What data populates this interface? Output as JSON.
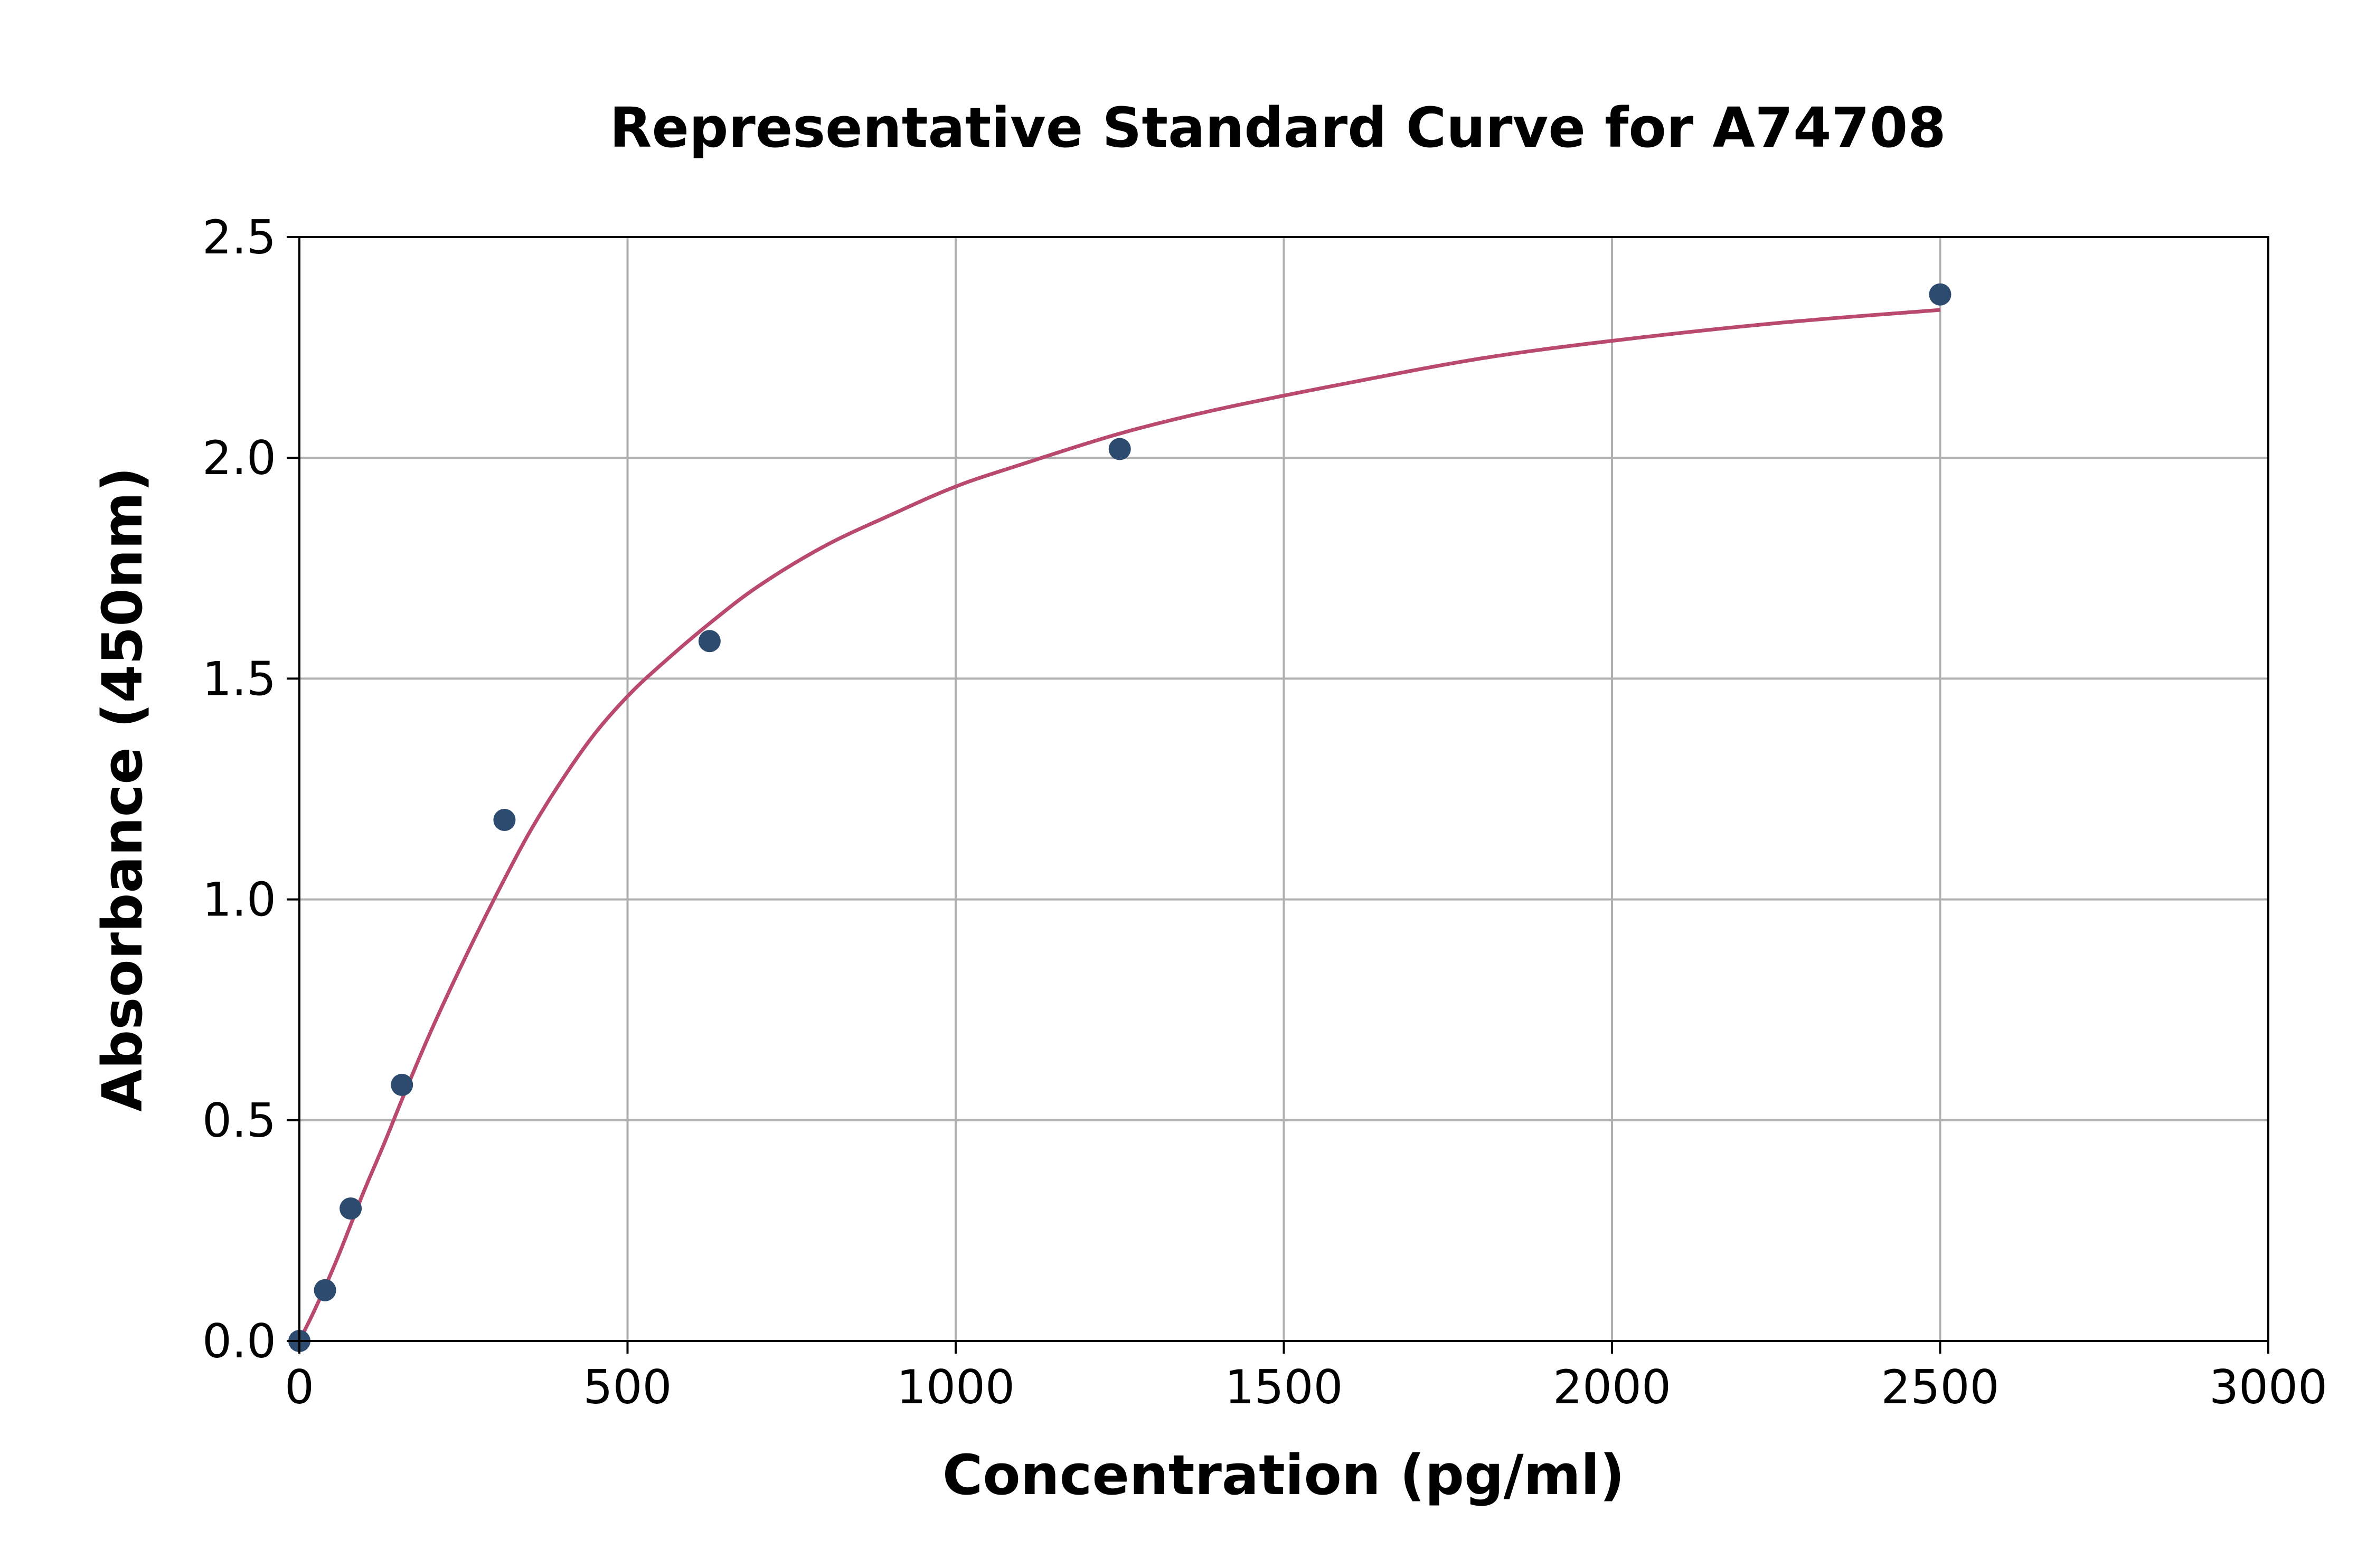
{
  "chart_data": {
    "type": "scatter",
    "title": "Representative Standard Curve for A74708",
    "xlabel": "Concentration (pg/ml)",
    "ylabel": "Absorbance (450nm)",
    "xlim": [
      0,
      3000
    ],
    "ylim": [
      0,
      2.5
    ],
    "xticks": [
      0,
      500,
      1000,
      1500,
      2000,
      2500,
      3000
    ],
    "xtick_labels": [
      "0",
      "500",
      "1000",
      "1500",
      "2000",
      "2500",
      "3000"
    ],
    "yticks": [
      0,
      0.5,
      1.0,
      1.5,
      2.0,
      2.5
    ],
    "ytick_labels": [
      "0.0",
      "0.5",
      "1.0",
      "1.5",
      "2.0",
      "2.5"
    ],
    "grid": true,
    "legend": "none",
    "series": [
      {
        "kind": "points",
        "color": "#2d4b6e",
        "x": [
          0,
          39.06,
          78.13,
          156.25,
          312.5,
          625,
          1250,
          2500
        ],
        "y": [
          0.0,
          0.115,
          0.3,
          0.58,
          1.18,
          1.585,
          2.02,
          2.37
        ]
      },
      {
        "kind": "fit-curve",
        "color": "#b94a6e",
        "x": [
          0,
          20,
          40,
          60,
          80,
          100,
          130,
          160,
          200,
          250,
          300,
          350,
          400,
          450,
          500,
          550,
          625,
          700,
          800,
          900,
          1000,
          1100,
          1250,
          1400,
          1600,
          1800,
          2000,
          2250,
          2500
        ],
        "y": [
          0.0,
          0.06,
          0.125,
          0.195,
          0.27,
          0.345,
          0.45,
          0.56,
          0.7,
          0.86,
          1.01,
          1.15,
          1.27,
          1.375,
          1.46,
          1.53,
          1.625,
          1.71,
          1.8,
          1.87,
          1.935,
          1.985,
          2.055,
          2.11,
          2.17,
          2.225,
          2.265,
          2.305,
          2.335
        ]
      }
    ]
  }
}
